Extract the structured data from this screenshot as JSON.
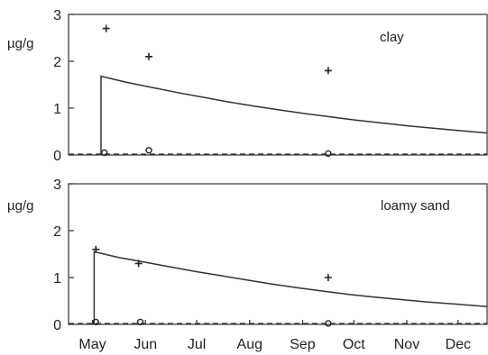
{
  "chart_data": [
    {
      "type": "line",
      "panel_label": "clay",
      "ylabel": "µg/g",
      "x_unit": "day_of_year",
      "xlim": [
        121,
        366
      ],
      "ylim": [
        0,
        3
      ],
      "yticks": [
        "0",
        "1",
        "2",
        "3"
      ],
      "xticks": [],
      "grid": false,
      "series": [
        {
          "style": "solid",
          "x": [
            140,
            140,
            155,
            170,
            185,
            200,
            215,
            230,
            245,
            260,
            275,
            290,
            305,
            320,
            335,
            350,
            366
          ],
          "y": [
            0,
            1.68,
            1.55,
            1.44,
            1.33,
            1.23,
            1.13,
            1.04,
            0.96,
            0.88,
            0.81,
            0.74,
            0.68,
            0.62,
            0.57,
            0.52,
            0.47
          ]
        },
        {
          "style": "dashed",
          "x": [
            121,
            366
          ],
          "y": [
            0.02,
            0.02
          ]
        }
      ],
      "markers": [
        {
          "symbol": "+",
          "x": [
            143,
            168,
            273
          ],
          "y": [
            2.7,
            2.1,
            1.8
          ]
        },
        {
          "symbol": "o",
          "x": [
            142,
            168,
            273
          ],
          "y": [
            0.05,
            0.1,
            0.03
          ]
        }
      ]
    },
    {
      "type": "line",
      "panel_label": "loamy sand",
      "ylabel": "µg/g",
      "x_unit": "day_of_year",
      "xlim": [
        121,
        366
      ],
      "ylim": [
        0,
        3
      ],
      "yticks": [
        "0",
        "1",
        "2",
        "3"
      ],
      "xticks": [
        "May",
        "Jun",
        "Jul",
        "Aug",
        "Sep",
        "Oct",
        "Nov",
        "Dec"
      ],
      "xtick_days": [
        135,
        166,
        196,
        227,
        258,
        288,
        319,
        349
      ],
      "grid": false,
      "series": [
        {
          "style": "solid",
          "x": [
            136,
            136,
            150,
            165,
            180,
            195,
            210,
            225,
            240,
            255,
            270,
            285,
            300,
            315,
            330,
            345,
            366
          ],
          "y": [
            0,
            1.55,
            1.43,
            1.33,
            1.23,
            1.13,
            1.04,
            0.95,
            0.86,
            0.78,
            0.71,
            0.64,
            0.58,
            0.53,
            0.48,
            0.44,
            0.38
          ]
        },
        {
          "style": "dashed",
          "x": [
            121,
            366
          ],
          "y": [
            0.02,
            0.02
          ]
        }
      ],
      "markers": [
        {
          "symbol": "+",
          "x": [
            137,
            162,
            273
          ],
          "y": [
            1.6,
            1.3,
            1.0
          ]
        },
        {
          "symbol": "o",
          "x": [
            137,
            163,
            273
          ],
          "y": [
            0.05,
            0.05,
            0.02
          ]
        }
      ]
    }
  ]
}
